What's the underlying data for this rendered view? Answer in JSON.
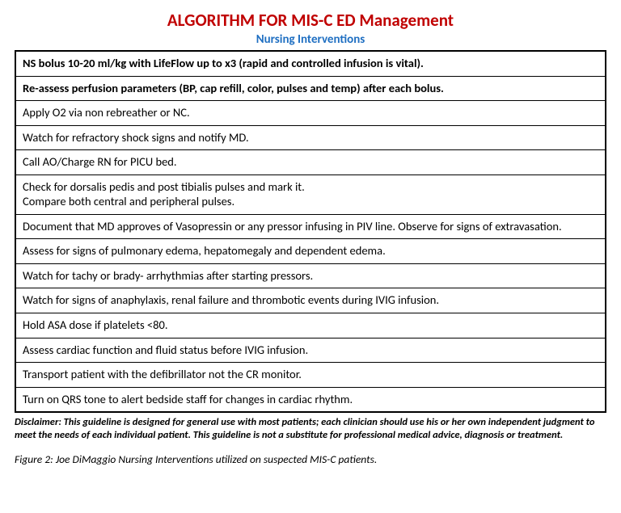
{
  "title": {
    "text": "ALGORITHM FOR MIS-C ED Management",
    "color": "#c00000"
  },
  "subtitle": {
    "text": "Nursing Interventions",
    "color": "#1f6fc2"
  },
  "table": {
    "border_color": "#000000",
    "rows": [
      {
        "text": "NS bolus 10-20 ml/kg with LifeFlow up to x3 (rapid and controlled infusion is vital).",
        "bold": true
      },
      {
        "text": "Re-assess perfusion parameters (BP, cap refill, color, pulses and temp) after each bolus.",
        "bold": true
      },
      {
        "text": "Apply O2 via non rebreather or NC.",
        "bold": false
      },
      {
        "text": "Watch for refractory shock signs and notify MD.",
        "bold": false
      },
      {
        "text": "Call AO/Charge RN for PICU bed.",
        "bold": false
      },
      {
        "text": "Check for dorsalis pedis and post tibialis pulses and mark it.\n Compare both central and peripheral pulses.",
        "bold": false
      },
      {
        "text": "Document that MD approves of Vasopressin or any pressor infusing in PIV line. Observe for signs of extravasation.",
        "bold": false
      },
      {
        "text": "Assess for signs of pulmonary edema, hepatomegaly and dependent edema.",
        "bold": false
      },
      {
        "text": "Watch for tachy or brady- arrhythmias after starting pressors.",
        "bold": false
      },
      {
        "text": "Watch for signs of anaphylaxis, renal failure and thrombotic events during IVIG infusion.",
        "bold": false
      },
      {
        "text": "Hold ASA dose if platelets <80.",
        "bold": false
      },
      {
        "text": "Assess cardiac function and fluid status before IVIG infusion.",
        "bold": false
      },
      {
        "text": "Transport patient with the defibrillator not the CR monitor.",
        "bold": false
      },
      {
        "text": "Turn on QRS tone to alert bedside staff for changes in cardiac rhythm.",
        "bold": false
      }
    ]
  },
  "disclaimer": "Disclaimer: This guideline is designed for general use with most patients; each clinician should use his or her own independent judgment to meet the needs of each individual patient. This guideline is not a substitute for professional medical advice, diagnosis or treatment.",
  "caption": "Figure 2: Joe DiMaggio Nursing Interventions utilized on suspected MIS-C patients."
}
